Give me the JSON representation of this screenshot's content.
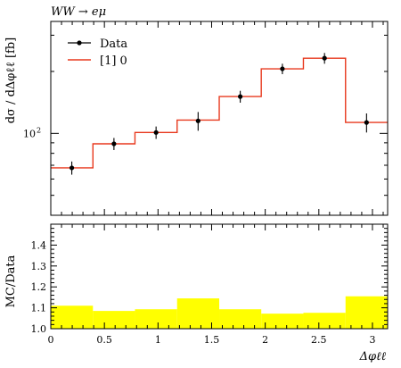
{
  "chart_data": [
    {
      "type": "line",
      "title": "WW → eμ",
      "xlabel": "",
      "ylabel": "dσ / dΔφℓℓ [fb]",
      "yscale": "log",
      "ylim": [
        40,
        350
      ],
      "xlim": [
        0,
        3.1416
      ],
      "y_tick_labels": [
        {
          "value": 100,
          "label": "10",
          "exponent": "2"
        }
      ],
      "legend": {
        "position": "top-left",
        "entries": [
          "Data",
          "[1] 0"
        ]
      },
      "bin_edges": [
        0,
        0.393,
        0.785,
        1.178,
        1.571,
        1.963,
        2.356,
        2.749,
        3.1416
      ],
      "series": [
        {
          "name": "Data",
          "kind": "points-with-errors",
          "color": "#000000",
          "x": [
            0.196,
            0.589,
            0.982,
            1.374,
            1.767,
            2.16,
            2.553,
            2.945
          ],
          "values": [
            68,
            89,
            101,
            115,
            151,
            206,
            232,
            113
          ],
          "err_low": [
            5,
            6,
            7,
            12,
            10,
            12,
            14,
            12
          ],
          "err_high": [
            5,
            6,
            7,
            12,
            10,
            12,
            14,
            12
          ]
        },
        {
          "name": "[1] 0",
          "kind": "step",
          "color": "#e8391e",
          "values": [
            68,
            89,
            101,
            116,
            151,
            206,
            232,
            113
          ]
        }
      ]
    },
    {
      "type": "area",
      "title": "",
      "xlabel": "Δφℓℓ",
      "ylabel": "MC/Data",
      "ylim": [
        1.0,
        1.5
      ],
      "xlim": [
        0,
        3.1416
      ],
      "x_ticks": [
        0,
        0.5,
        1,
        1.5,
        2,
        2.5,
        3
      ],
      "x_tick_labels": [
        "0",
        "0.5",
        "1",
        "1.5",
        "2",
        "2.5",
        "3"
      ],
      "y_ticks": [
        1.0,
        1.1,
        1.2,
        1.3,
        1.4
      ],
      "y_tick_labels": [
        "1.0",
        "1.1",
        "1.2",
        "1.3",
        "1.4"
      ],
      "bin_edges": [
        0,
        0.393,
        0.785,
        1.178,
        1.571,
        1.963,
        2.356,
        2.749,
        3.1416
      ],
      "series": [
        {
          "name": "",
          "kind": "error-band",
          "color": "#ffff00",
          "center": 1.0,
          "values": [
            1.11,
            1.085,
            1.093,
            1.145,
            1.093,
            1.072,
            1.076,
            1.155
          ]
        }
      ]
    }
  ]
}
